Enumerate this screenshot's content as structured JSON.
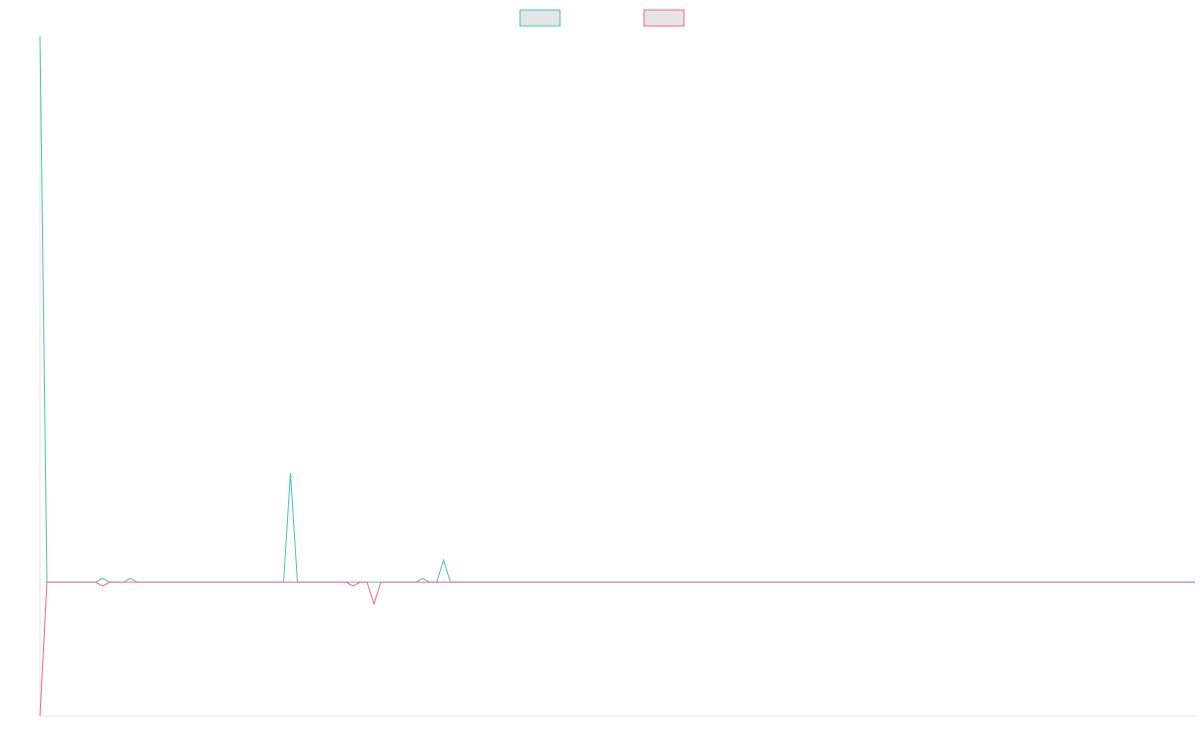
{
  "chart_data": {
    "type": "line",
    "title": "",
    "xlabel": "",
    "ylabel": "",
    "grid": false,
    "legend_position": "top-center",
    "x": [
      0,
      1,
      2,
      3,
      4,
      5,
      6,
      7,
      8,
      9,
      10,
      11,
      12,
      13,
      14,
      15,
      16,
      17,
      18,
      19,
      20,
      21,
      22,
      23,
      24,
      25,
      26,
      27,
      28,
      29,
      30,
      31,
      32,
      33,
      34,
      35,
      36,
      37,
      38,
      39,
      40,
      41,
      42,
      43,
      44,
      45,
      46,
      47,
      48,
      49,
      50,
      51,
      52,
      53,
      54,
      55,
      56,
      57,
      58,
      59,
      60,
      61,
      62,
      63,
      64,
      65,
      66,
      67,
      68,
      69,
      70,
      71,
      72,
      73,
      74,
      75,
      76,
      77,
      78,
      79,
      80,
      81,
      82,
      83,
      84,
      85,
      86,
      87,
      88,
      89,
      90,
      91,
      92,
      93,
      94,
      95,
      96,
      97,
      98,
      99,
      100,
      101,
      102,
      103,
      104,
      105,
      106,
      107,
      108,
      109,
      110,
      111,
      112,
      113,
      114,
      115,
      116,
      117,
      118,
      119,
      120,
      121,
      122,
      123,
      124,
      125,
      126,
      127,
      128,
      129,
      130,
      131,
      132,
      133,
      134,
      135,
      136,
      137,
      138,
      139,
      140,
      141,
      142,
      143,
      144,
      145,
      146,
      147,
      148,
      149,
      150,
      151,
      152,
      153,
      154,
      155,
      156,
      157,
      158,
      159,
      160,
      161,
      162,
      163,
      164,
      165,
      166
    ],
    "ylim": [
      -0.245,
      1.0
    ],
    "series": [
      {
        "color": "#4bc0c0",
        "fill": "#e6e6e6",
        "values": [
          1.0,
          0,
          0,
          0,
          0,
          0,
          0,
          0,
          0,
          0.007,
          0,
          0,
          0,
          0.007,
          0,
          0,
          0,
          0,
          0,
          0,
          0,
          0,
          0,
          0,
          0,
          0,
          0,
          0,
          0,
          0,
          0,
          0,
          0,
          0,
          0,
          0,
          0.2,
          0,
          0,
          0,
          0,
          0,
          0,
          0,
          0,
          0,
          0,
          0,
          0,
          0,
          0,
          0,
          0,
          0,
          0,
          0.007,
          0,
          0,
          0.04,
          0,
          0,
          0,
          0,
          0,
          0,
          0,
          0,
          0,
          0,
          0,
          0,
          0,
          0,
          0,
          0,
          0,
          0,
          0,
          0,
          0,
          0,
          0,
          0,
          0,
          0,
          0,
          0,
          0,
          0,
          0,
          0,
          0,
          0,
          0,
          0,
          0,
          0,
          0,
          0,
          0,
          0,
          0,
          0,
          0,
          0,
          0,
          0,
          0,
          0,
          0,
          0,
          0,
          0,
          0,
          0,
          0,
          0,
          0,
          0,
          0,
          0,
          0,
          0,
          0,
          0,
          0,
          0,
          0,
          0,
          0,
          0,
          0,
          0,
          0,
          0,
          0,
          0,
          0,
          0,
          0,
          0,
          0,
          0,
          0,
          0,
          0,
          0,
          0,
          0,
          0,
          0,
          0,
          0,
          0,
          0,
          0,
          0,
          0,
          0,
          0,
          0,
          0,
          0,
          0,
          0,
          0,
          0
        ]
      },
      {
        "color": "#ff6384",
        "fill": "#e6e6e6",
        "values": [
          -0.245,
          0,
          0,
          0,
          0,
          0,
          0,
          0,
          0,
          -0.007,
          0,
          0,
          0,
          0,
          0,
          0,
          0,
          0,
          0,
          0,
          0,
          0,
          0,
          0,
          0,
          0,
          0,
          0,
          0,
          0,
          0,
          0,
          0,
          0,
          0,
          0,
          0,
          0,
          0,
          0,
          0,
          0,
          0,
          0,
          0,
          -0.007,
          0,
          0,
          -0.04,
          0,
          0,
          0,
          0,
          0,
          0,
          0,
          0,
          0,
          0,
          0,
          0,
          0,
          0,
          0,
          0,
          0,
          0,
          0,
          0,
          0,
          0,
          0,
          0,
          0,
          0,
          0,
          0,
          0,
          0,
          0,
          0,
          0,
          0,
          0,
          0,
          0,
          0,
          0,
          0,
          0,
          0,
          0,
          0,
          0,
          0,
          0,
          0,
          0,
          0,
          0,
          0,
          0,
          0,
          0,
          0,
          0,
          0,
          0,
          0,
          0,
          0,
          0,
          0,
          0,
          0,
          0,
          0,
          0,
          0,
          0,
          0,
          0,
          0,
          0,
          0,
          0,
          0,
          0,
          0,
          0,
          0,
          0,
          0,
          0,
          0,
          0,
          0,
          0,
          0,
          0,
          0,
          0,
          0,
          0,
          0,
          0,
          0,
          0,
          0,
          0,
          0,
          0,
          0,
          0,
          0,
          0,
          0,
          0,
          0,
          0,
          0,
          0,
          0,
          0,
          0,
          0,
          0
        ]
      }
    ]
  }
}
